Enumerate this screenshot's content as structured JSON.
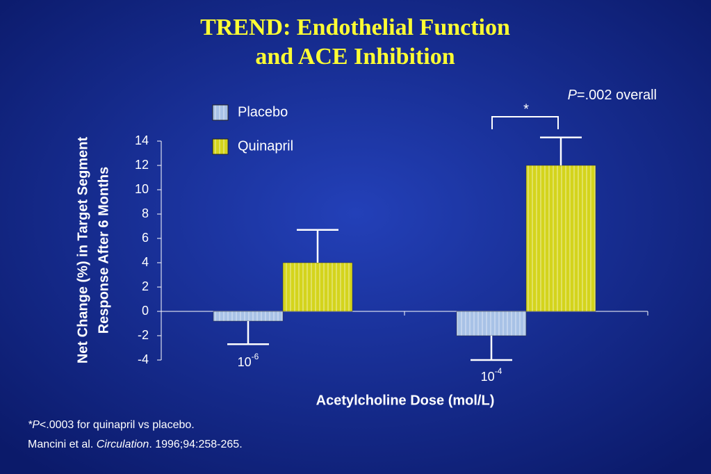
{
  "chart_data": {
    "type": "bar",
    "title": [
      "TREND: Endothelial Function",
      "and ACE Inhibition"
    ],
    "y_label": [
      "Net Change (%) in Target Segment",
      "Response After 6 Months"
    ],
    "x_label": "Acetylcholine Dose (mol/L)",
    "categories": [
      {
        "base": "10",
        "exponent": "-6"
      },
      {
        "base": "10",
        "exponent": "-4"
      }
    ],
    "series": [
      {
        "name": "Placebo",
        "color": "#a8c2e6",
        "values": [
          -0.8,
          -2.0
        ],
        "errors": [
          1.9,
          2.0
        ]
      },
      {
        "name": "Quinapril",
        "color": "#d4d41c",
        "values": [
          4.0,
          12.0
        ],
        "errors": [
          2.7,
          2.3
        ]
      }
    ],
    "ylim": [
      -4,
      14
    ],
    "yticks": [
      -4,
      -2,
      0,
      2,
      4,
      6,
      8,
      10,
      12,
      14
    ],
    "annotations": {
      "overall": {
        "italic": "P",
        "text": "=.002 overall"
      },
      "significance": "*"
    },
    "footnotes": [
      {
        "italic": "*P",
        "text": "<.0003 for quinapril vs placebo."
      },
      {
        "text": "Mancini et al. ",
        "italic": "Circulation",
        "rest": ". 1996;94:258-265."
      }
    ]
  }
}
